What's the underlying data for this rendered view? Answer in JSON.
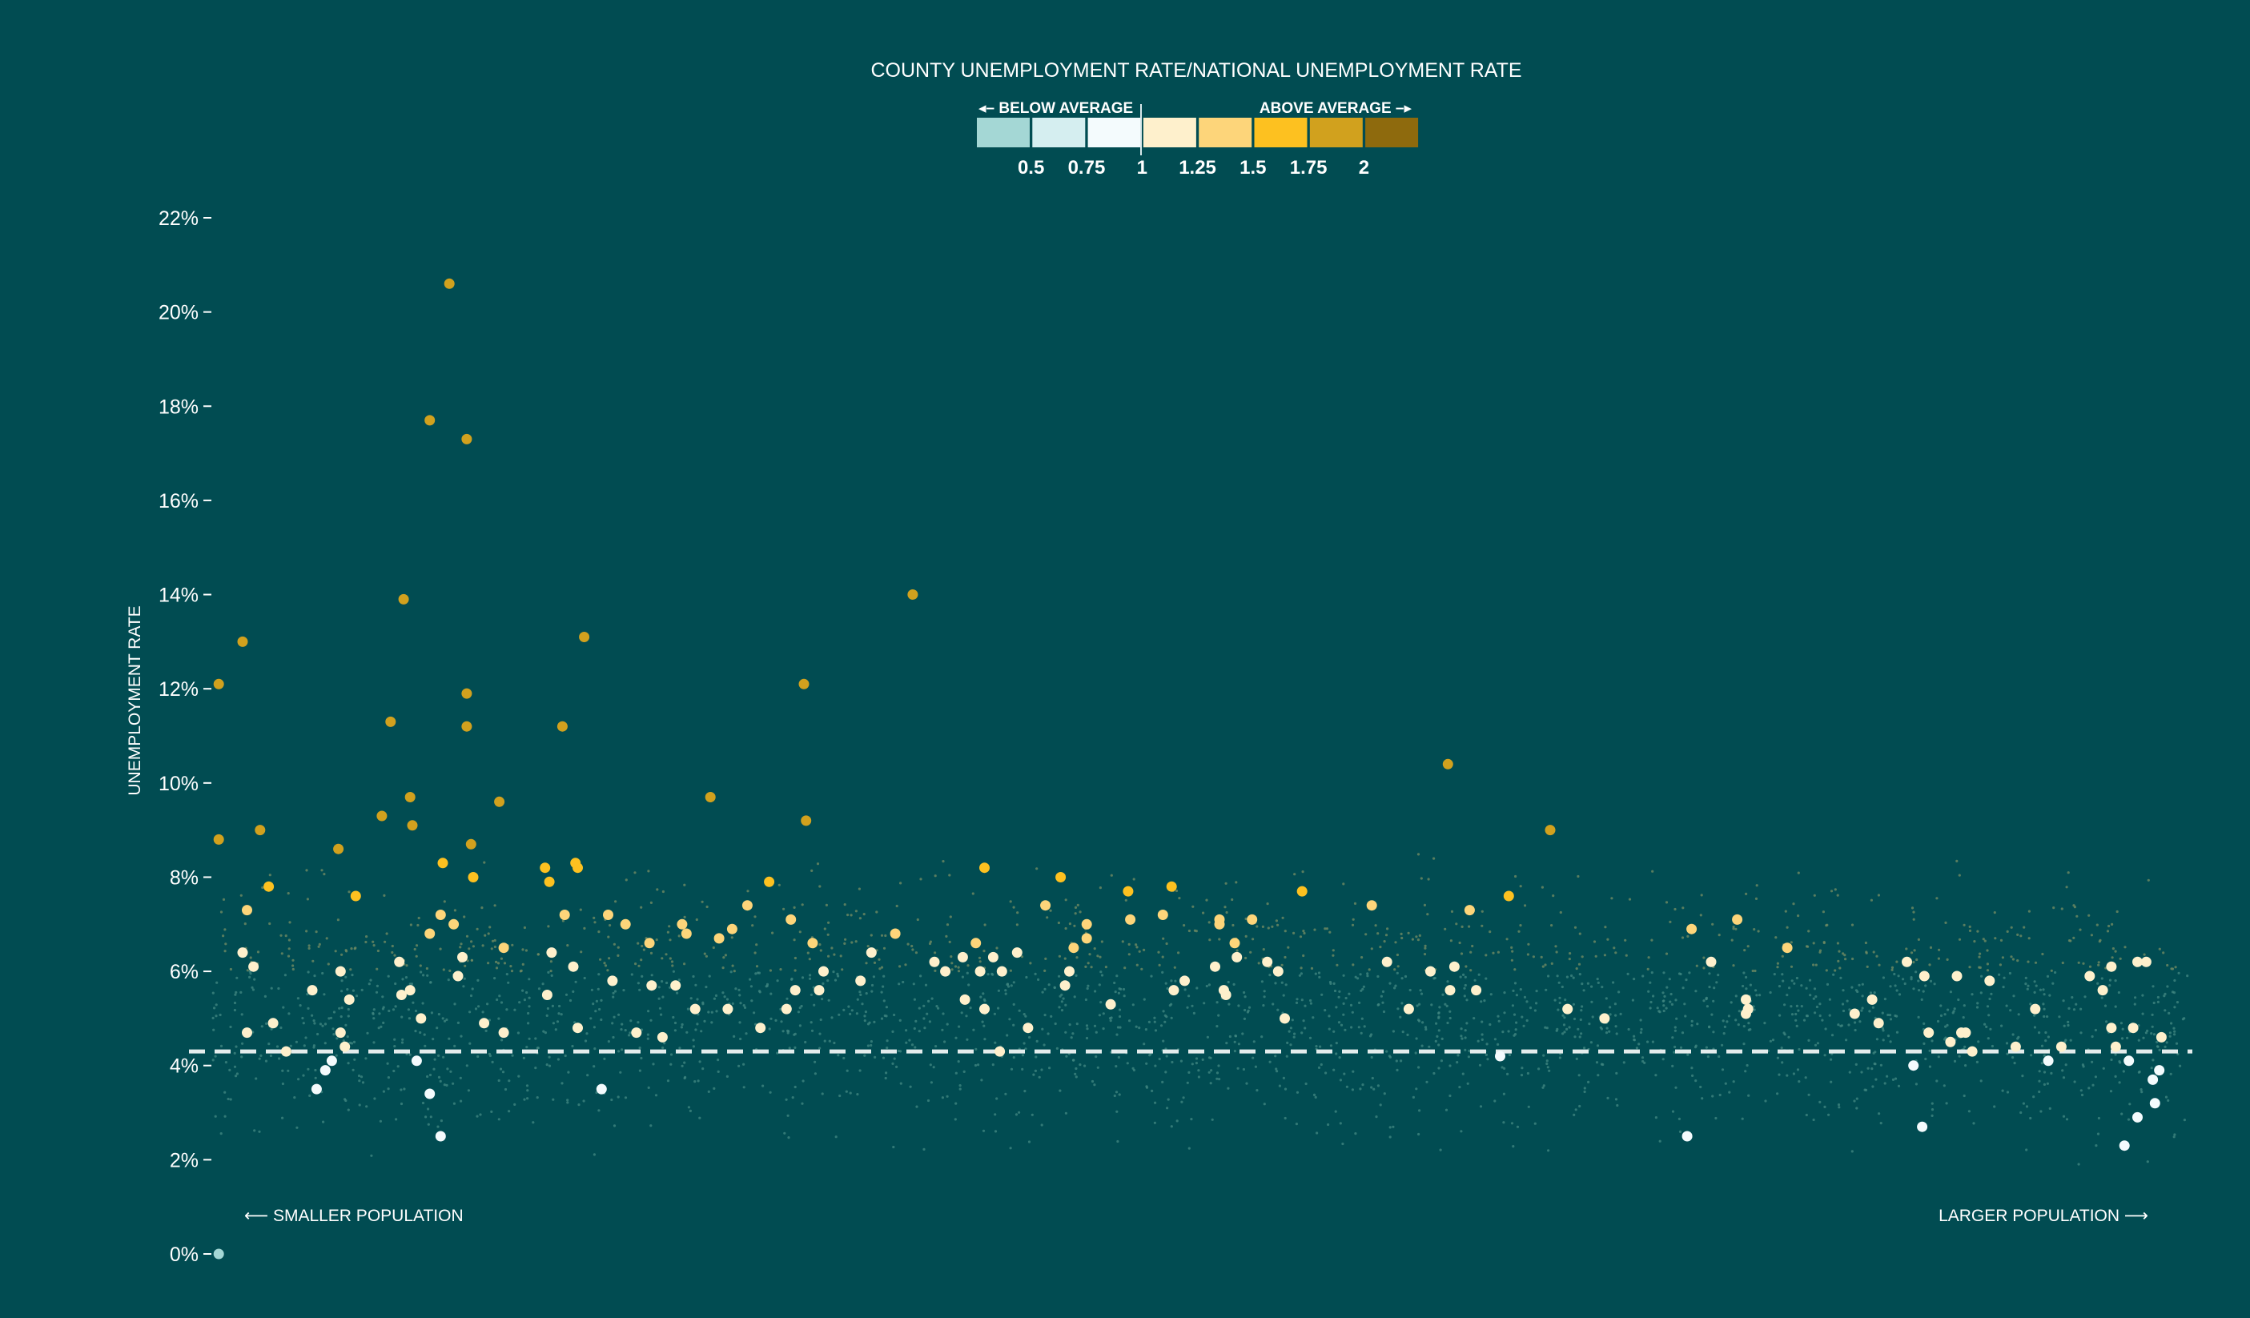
{
  "chart_data": {
    "type": "scatter",
    "title": "COUNTY UNEMPLOYMENT RATE/NATIONAL UNEMPLOYMENT RATE",
    "ylabel": "UNEMPLOYMENT RATE",
    "ylim": [
      0,
      22
    ],
    "y_ticks": [
      0,
      2,
      4,
      6,
      8,
      10,
      12,
      14,
      16,
      18,
      20,
      22
    ],
    "y_tick_labels": [
      "0%",
      "2%",
      "4%",
      "6%",
      "8%",
      "10%",
      "12%",
      "14%",
      "16%",
      "18%",
      "20%",
      "22%"
    ],
    "x_axis_note_left": "⟵ SMALLER POPULATION",
    "x_axis_note_right": "LARGER POPULATION ⟶",
    "national_rate_line": 4.3,
    "grid": false,
    "legend": {
      "placement": "top-center",
      "below_label": "◂– BELOW AVERAGE",
      "above_label": "ABOVE AVERAGE –▸",
      "swatches": [
        "#a4d7d5",
        "#d5eef0",
        "#f4fbfd",
        "#fef0cc",
        "#fdd57a",
        "#fdc120",
        "#d1a11e",
        "#8e6a0d"
      ],
      "breaks": [
        "0.5",
        "0.75",
        "1",
        "1.25",
        "1.5",
        "1.75",
        "2"
      ]
    },
    "point_rank_domain": [
      0,
      100
    ],
    "points": [
      [
        0.3,
        12.1
      ],
      [
        0.3,
        8.8
      ],
      [
        0.3,
        0.0
      ],
      [
        1.4,
        13.0
      ],
      [
        1.4,
        6.4
      ],
      [
        1.6,
        7.3
      ],
      [
        1.6,
        4.7
      ],
      [
        1.9,
        6.1
      ],
      [
        2.2,
        9.0
      ],
      [
        2.6,
        7.8
      ],
      [
        2.8,
        4.9
      ],
      [
        3.4,
        4.3
      ],
      [
        4.6,
        5.6
      ],
      [
        4.8,
        3.5
      ],
      [
        5.2,
        3.9
      ],
      [
        5.5,
        4.1
      ],
      [
        5.8,
        8.6
      ],
      [
        5.9,
        6.0
      ],
      [
        5.9,
        4.7
      ],
      [
        6.1,
        4.4
      ],
      [
        6.3,
        5.4
      ],
      [
        6.6,
        7.6
      ],
      [
        7.8,
        9.3
      ],
      [
        8.2,
        11.3
      ],
      [
        8.6,
        6.2
      ],
      [
        8.8,
        13.9
      ],
      [
        8.7,
        5.5
      ],
      [
        9.1,
        9.7
      ],
      [
        9.1,
        5.6
      ],
      [
        9.2,
        9.1
      ],
      [
        9.4,
        4.1
      ],
      [
        9.6,
        5.0
      ],
      [
        10.0,
        17.7
      ],
      [
        10.0,
        6.8
      ],
      [
        10.0,
        3.4
      ],
      [
        10.5,
        7.2
      ],
      [
        10.5,
        2.5
      ],
      [
        10.6,
        8.3
      ],
      [
        10.9,
        20.6
      ],
      [
        11.1,
        7.0
      ],
      [
        11.3,
        5.9
      ],
      [
        11.5,
        6.3
      ],
      [
        11.7,
        17.3
      ],
      [
        11.7,
        11.9
      ],
      [
        11.7,
        11.2
      ],
      [
        11.9,
        8.7
      ],
      [
        12.0,
        8.0
      ],
      [
        12.5,
        4.9
      ],
      [
        13.2,
        9.6
      ],
      [
        13.4,
        6.5
      ],
      [
        13.4,
        4.7
      ],
      [
        15.3,
        8.2
      ],
      [
        15.4,
        5.5
      ],
      [
        15.5,
        7.9
      ],
      [
        15.6,
        6.4
      ],
      [
        16.1,
        11.2
      ],
      [
        16.2,
        7.2
      ],
      [
        16.6,
        6.1
      ],
      [
        16.7,
        8.3
      ],
      [
        16.8,
        8.2
      ],
      [
        16.8,
        4.8
      ],
      [
        17.1,
        13.1
      ],
      [
        17.9,
        3.5
      ],
      [
        18.2,
        7.2
      ],
      [
        18.4,
        5.8
      ],
      [
        19.0,
        7.0
      ],
      [
        19.5,
        4.7
      ],
      [
        20.1,
        6.6
      ],
      [
        20.2,
        5.7
      ],
      [
        20.7,
        4.6
      ],
      [
        21.3,
        5.7
      ],
      [
        21.6,
        7.0
      ],
      [
        21.8,
        6.8
      ],
      [
        22.2,
        5.2
      ],
      [
        22.9,
        9.7
      ],
      [
        23.3,
        6.7
      ],
      [
        23.7,
        5.2
      ],
      [
        23.9,
        6.9
      ],
      [
        24.6,
        7.4
      ],
      [
        25.2,
        4.8
      ],
      [
        25.6,
        7.9
      ],
      [
        26.4,
        5.2
      ],
      [
        26.6,
        7.1
      ],
      [
        26.8,
        5.6
      ],
      [
        27.2,
        12.1
      ],
      [
        27.3,
        9.2
      ],
      [
        27.6,
        6.6
      ],
      [
        27.9,
        5.6
      ],
      [
        28.1,
        6.0
      ],
      [
        29.8,
        5.8
      ],
      [
        30.3,
        6.4
      ],
      [
        31.4,
        6.8
      ],
      [
        32.2,
        14.0
      ],
      [
        33.2,
        6.2
      ],
      [
        33.7,
        6.0
      ],
      [
        34.5,
        6.3
      ],
      [
        34.6,
        5.4
      ],
      [
        35.1,
        6.6
      ],
      [
        35.3,
        6.0
      ],
      [
        35.5,
        8.2
      ],
      [
        35.5,
        5.2
      ],
      [
        35.9,
        6.3
      ],
      [
        36.2,
        4.3
      ],
      [
        36.3,
        6.0
      ],
      [
        37.0,
        6.4
      ],
      [
        37.5,
        4.8
      ],
      [
        38.3,
        7.4
      ],
      [
        39.0,
        8.0
      ],
      [
        39.2,
        5.7
      ],
      [
        39.4,
        6.0
      ],
      [
        39.6,
        6.5
      ],
      [
        40.2,
        6.7
      ],
      [
        40.2,
        7.0
      ],
      [
        41.3,
        5.3
      ],
      [
        42.1,
        7.7
      ],
      [
        42.2,
        7.1
      ],
      [
        43.7,
        7.2
      ],
      [
        44.1,
        7.8
      ],
      [
        44.2,
        5.6
      ],
      [
        44.7,
        5.8
      ],
      [
        46.1,
        6.1
      ],
      [
        46.3,
        7.1
      ],
      [
        46.3,
        7.0
      ],
      [
        46.5,
        5.6
      ],
      [
        46.6,
        5.5
      ],
      [
        47.0,
        6.6
      ],
      [
        47.1,
        6.3
      ],
      [
        47.8,
        7.1
      ],
      [
        48.5,
        6.2
      ],
      [
        49.0,
        6.0
      ],
      [
        49.3,
        5.0
      ],
      [
        50.1,
        7.7
      ],
      [
        53.3,
        7.4
      ],
      [
        54.0,
        6.2
      ],
      [
        55.0,
        5.2
      ],
      [
        56.0,
        6.0
      ],
      [
        56.8,
        10.4
      ],
      [
        56.9,
        5.6
      ],
      [
        57.1,
        6.1
      ],
      [
        57.8,
        7.3
      ],
      [
        58.1,
        5.6
      ],
      [
        59.2,
        4.2
      ],
      [
        59.6,
        7.6
      ],
      [
        61.5,
        9.0
      ],
      [
        62.3,
        5.2
      ],
      [
        64.0,
        5.0
      ],
      [
        67.8,
        2.5
      ],
      [
        68.0,
        6.9
      ],
      [
        68.9,
        6.2
      ],
      [
        70.1,
        7.1
      ],
      [
        70.5,
        5.4
      ],
      [
        70.5,
        5.1
      ],
      [
        70.6,
        5.2
      ],
      [
        72.4,
        6.5
      ],
      [
        75.5,
        5.1
      ],
      [
        76.3,
        5.4
      ],
      [
        76.6,
        4.9
      ],
      [
        77.9,
        6.2
      ],
      [
        78.2,
        4.0
      ],
      [
        78.6,
        2.7
      ],
      [
        78.7,
        5.9
      ],
      [
        78.9,
        4.7
      ],
      [
        79.9,
        4.5
      ],
      [
        80.2,
        5.9
      ],
      [
        80.4,
        4.7
      ],
      [
        80.6,
        4.7
      ],
      [
        80.9,
        4.3
      ],
      [
        81.7,
        5.8
      ],
      [
        82.9,
        4.4
      ],
      [
        83.8,
        5.2
      ],
      [
        84.4,
        4.1
      ],
      [
        85.0,
        4.4
      ],
      [
        86.3,
        5.9
      ],
      [
        86.9,
        5.6
      ],
      [
        87.3,
        4.8
      ],
      [
        87.3,
        6.1
      ],
      [
        87.5,
        4.4
      ],
      [
        87.9,
        2.3
      ],
      [
        88.1,
        4.1
      ],
      [
        88.5,
        6.2
      ],
      [
        88.3,
        4.8
      ],
      [
        88.5,
        2.9
      ],
      [
        88.9,
        6.2
      ],
      [
        89.2,
        3.7
      ],
      [
        89.3,
        3.2
      ],
      [
        89.5,
        3.9
      ],
      [
        89.6,
        4.6
      ]
    ]
  }
}
